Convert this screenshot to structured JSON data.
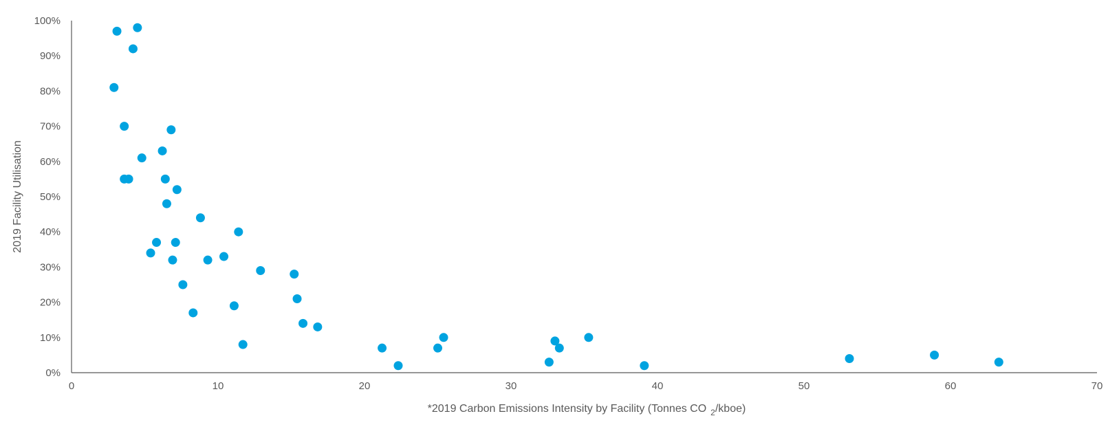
{
  "chart_data": {
    "type": "scatter",
    "title": "",
    "xlabel": "*2019 Carbon Emissions Intensity by Facility (Tonnes CO",
    "xlabel_sub": "2",
    "xlabel_tail": "/kboe)",
    "ylabel": "2019 Facility Utilisation",
    "xlim": [
      0,
      70
    ],
    "ylim": [
      0,
      100
    ],
    "x_ticks": [
      "0",
      "10",
      "20",
      "30",
      "40",
      "50",
      "60",
      "70"
    ],
    "y_ticks": [
      "0%",
      "10%",
      "20%",
      "30%",
      "40%",
      "50%",
      "60%",
      "70%",
      "80%",
      "90%",
      "100%"
    ],
    "grid": false,
    "legend": "none",
    "color": "#00a3e0",
    "points": [
      {
        "x": 3.1,
        "y": 97
      },
      {
        "x": 4.5,
        "y": 98
      },
      {
        "x": 4.2,
        "y": 92
      },
      {
        "x": 2.9,
        "y": 81
      },
      {
        "x": 3.6,
        "y": 70
      },
      {
        "x": 6.8,
        "y": 69
      },
      {
        "x": 6.2,
        "y": 63
      },
      {
        "x": 4.8,
        "y": 61
      },
      {
        "x": 3.6,
        "y": 55
      },
      {
        "x": 3.9,
        "y": 55
      },
      {
        "x": 6.4,
        "y": 55
      },
      {
        "x": 7.2,
        "y": 52
      },
      {
        "x": 6.5,
        "y": 48
      },
      {
        "x": 8.8,
        "y": 44
      },
      {
        "x": 11.4,
        "y": 40
      },
      {
        "x": 5.8,
        "y": 37
      },
      {
        "x": 7.1,
        "y": 37
      },
      {
        "x": 5.4,
        "y": 34
      },
      {
        "x": 10.4,
        "y": 33
      },
      {
        "x": 6.9,
        "y": 32
      },
      {
        "x": 9.3,
        "y": 32
      },
      {
        "x": 12.9,
        "y": 29
      },
      {
        "x": 15.2,
        "y": 28
      },
      {
        "x": 7.6,
        "y": 25
      },
      {
        "x": 15.4,
        "y": 21
      },
      {
        "x": 11.1,
        "y": 19
      },
      {
        "x": 8.3,
        "y": 17
      },
      {
        "x": 15.8,
        "y": 14
      },
      {
        "x": 16.8,
        "y": 13
      },
      {
        "x": 25.4,
        "y": 10
      },
      {
        "x": 35.3,
        "y": 10
      },
      {
        "x": 33.0,
        "y": 9
      },
      {
        "x": 11.7,
        "y": 8
      },
      {
        "x": 21.2,
        "y": 7
      },
      {
        "x": 25.0,
        "y": 7
      },
      {
        "x": 33.3,
        "y": 7
      },
      {
        "x": 53.1,
        "y": 4
      },
      {
        "x": 58.9,
        "y": 5
      },
      {
        "x": 63.3,
        "y": 3
      },
      {
        "x": 32.6,
        "y": 3
      },
      {
        "x": 22.3,
        "y": 2
      },
      {
        "x": 39.1,
        "y": 2
      }
    ]
  }
}
